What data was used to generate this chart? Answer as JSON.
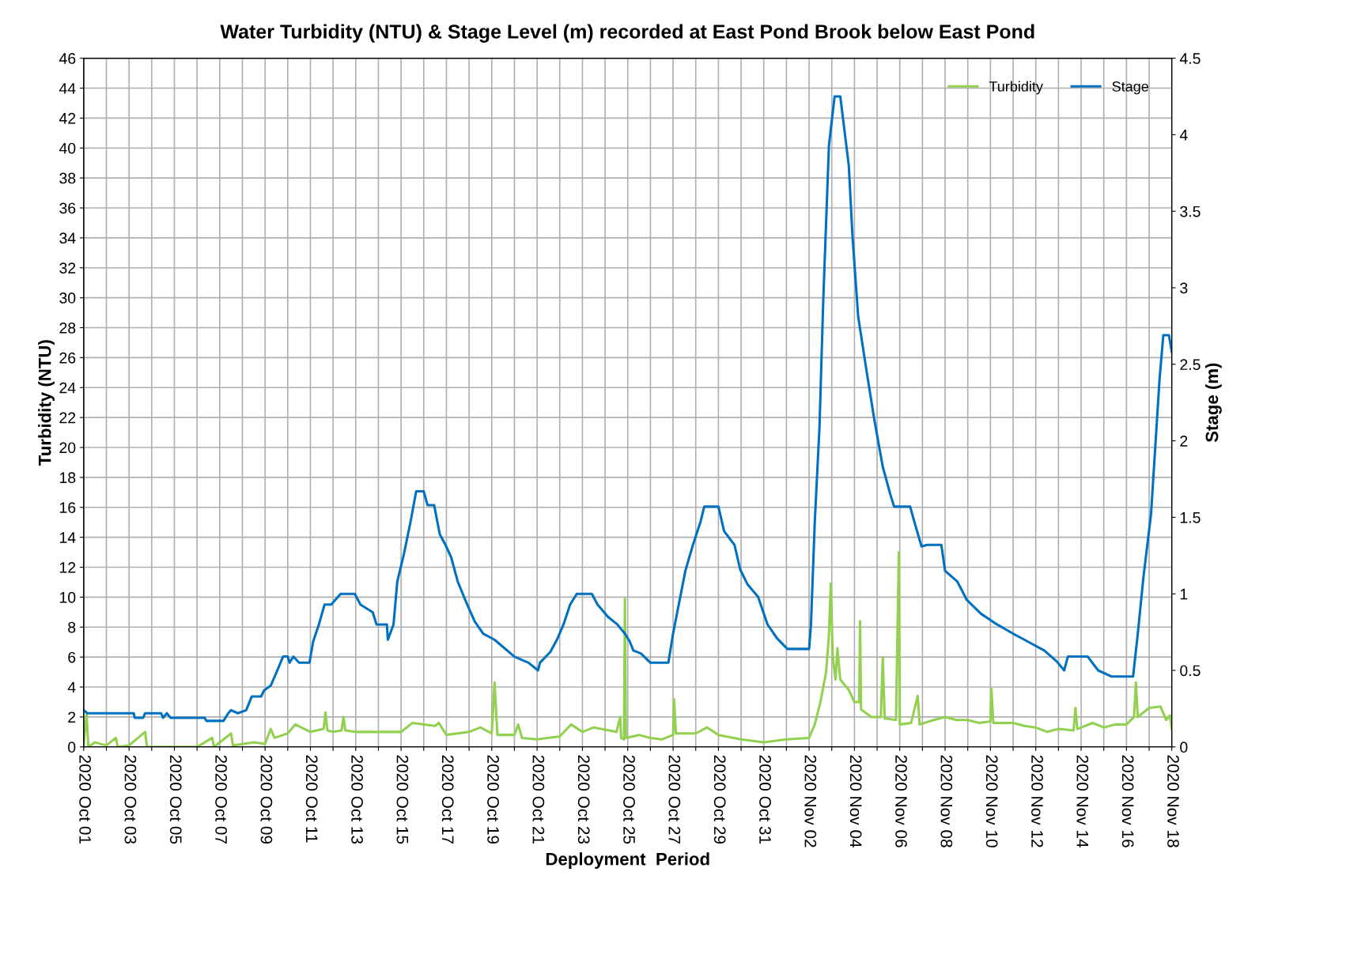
{
  "chart_data": {
    "type": "line",
    "title": "Water Turbidity (NTU) & Stage Level (m) recorded at East Pond Brook below East Pond",
    "xlabel": "Deployment  Period",
    "ylabel": "Turbidity (NTU)",
    "y2label": "Stage (m)",
    "series": [
      {
        "name": "Turbidity",
        "color": "#92d050",
        "x": [
          "2020-10-01T00:00",
          "2020-10-01T03:00",
          "2020-10-01T05:00",
          "2020-10-01T12:00",
          "2020-10-02T00:00",
          "2020-10-02T10:00",
          "2020-10-02T12:00",
          "2020-10-03T00:00",
          "2020-10-03T17:00",
          "2020-10-03T19:00",
          "2020-10-05T00:00",
          "2020-10-06T00:00",
          "2020-10-06T16:00",
          "2020-10-06T18:00",
          "2020-10-07T12:00",
          "2020-10-07T14:00",
          "2020-10-08T12:00",
          "2020-10-09T00:00",
          "2020-10-09T06:00",
          "2020-10-09T10:00",
          "2020-10-10T00:00",
          "2020-10-10T08:00",
          "2020-10-11T00:00",
          "2020-10-11T14:00",
          "2020-10-11T16:00",
          "2020-10-11T18:00",
          "2020-10-12T00:00",
          "2020-10-12T09:00",
          "2020-10-12T11:00",
          "2020-10-12T13:00",
          "2020-10-13T00:00",
          "2020-10-14T00:00",
          "2020-10-15T00:00",
          "2020-10-15T12:00",
          "2020-10-16T12:00",
          "2020-10-16T16:00",
          "2020-10-17T00:00",
          "2020-10-18T00:00",
          "2020-10-18T12:00",
          "2020-10-19T00:00",
          "2020-10-19T03:00",
          "2020-10-19T06:00",
          "2020-10-20T00:00",
          "2020-10-20T04:00",
          "2020-10-20T08:00",
          "2020-10-21T00:00",
          "2020-10-22T00:00",
          "2020-10-22T12:00",
          "2020-10-23T00:00",
          "2020-10-23T12:00",
          "2020-10-24T12:00",
          "2020-10-24T16:00",
          "2020-10-24T17:00",
          "2020-10-24T20:00",
          "2020-10-24T21:00",
          "2020-10-24T22:00",
          "2020-10-25T12:00",
          "2020-10-26T00:00",
          "2020-10-26T12:00",
          "2020-10-27T00:00",
          "2020-10-27T01:00",
          "2020-10-27T03:00",
          "2020-10-28T00:00",
          "2020-10-28T12:00",
          "2020-10-29T00:00",
          "2020-10-30T00:00",
          "2020-10-31T00:00",
          "2020-11-01T00:00",
          "2020-11-02T00:00",
          "2020-11-02T06:00",
          "2020-11-02T12:00",
          "2020-11-02T18:00",
          "2020-11-02T21:00",
          "2020-11-02T23:00",
          "2020-11-03T01:00",
          "2020-11-03T04:00",
          "2020-11-03T06:00",
          "2020-11-03T09:00",
          "2020-11-03T18:00",
          "2020-11-04T00:00",
          "2020-11-04T05:00",
          "2020-11-04T06:00",
          "2020-11-04T07:00",
          "2020-11-04T18:00",
          "2020-11-05T04:00",
          "2020-11-05T06:00",
          "2020-11-05T08:00",
          "2020-11-05T20:00",
          "2020-11-05T23:00",
          "2020-11-06T00:00",
          "2020-11-06T12:00",
          "2020-11-06T19:00",
          "2020-11-06T21:00",
          "2020-11-07T12:00",
          "2020-11-08T00:00",
          "2020-11-08T12:00",
          "2020-11-09T00:00",
          "2020-11-09T12:00",
          "2020-11-10T00:00",
          "2020-11-10T01:00",
          "2020-11-10T03:00",
          "2020-11-11T00:00",
          "2020-11-11T12:00",
          "2020-11-12T00:00",
          "2020-11-12T12:00",
          "2020-11-13T00:00",
          "2020-11-13T16:00",
          "2020-11-13T18:00",
          "2020-11-13T20:00",
          "2020-11-14T12:00",
          "2020-11-15T00:00",
          "2020-11-15T12:00",
          "2020-11-16T00:00",
          "2020-11-16T08:00",
          "2020-11-16T10:00",
          "2020-11-16T12:00",
          "2020-11-17T00:00",
          "2020-11-17T12:00",
          "2020-11-17T18:00",
          "2020-11-17T22:00",
          "2020-11-18T00:00"
        ],
        "values": [
          0.2,
          2.2,
          0,
          0.3,
          0.1,
          0.6,
          0,
          0.1,
          1.0,
          0,
          0,
          0,
          0.6,
          0,
          0.9,
          0.1,
          0.3,
          0.2,
          1.2,
          0.6,
          0.9,
          1.5,
          1.0,
          1.2,
          2.3,
          1.1,
          1.0,
          1.1,
          2.0,
          1.1,
          1.0,
          1.0,
          1.0,
          1.6,
          1.4,
          1.6,
          0.8,
          1.0,
          1.3,
          0.9,
          4.3,
          0.8,
          0.8,
          1.5,
          0.6,
          0.5,
          0.7,
          1.5,
          1.0,
          1.3,
          1.0,
          2.0,
          0.6,
          0.5,
          9.9,
          0.6,
          0.8,
          0.6,
          0.5,
          0.8,
          3.2,
          0.9,
          0.9,
          1.3,
          0.8,
          0.5,
          0.3,
          0.5,
          0.6,
          1.5,
          3.0,
          5.0,
          7.5,
          10.9,
          6.0,
          4.5,
          6.6,
          4.5,
          3.8,
          3.0,
          3.0,
          8.4,
          2.5,
          2.0,
          2.0,
          6.0,
          1.9,
          1.8,
          13.0,
          1.5,
          1.6,
          3.4,
          1.5,
          1.8,
          2.0,
          1.8,
          1.8,
          1.6,
          1.7,
          3.9,
          1.6,
          1.6,
          1.4,
          1.3,
          1.0,
          1.2,
          1.1,
          2.6,
          1.2,
          1.6,
          1.3,
          1.5,
          1.5,
          2.0,
          4.3,
          2.0,
          2.6,
          2.7,
          1.8,
          2.1,
          1.2
        ]
      },
      {
        "name": "Stage",
        "color": "#0070c0",
        "axis": "y2",
        "x": [
          "2020-10-01T00:00",
          "2020-10-01T04:00",
          "2020-10-03T05:00",
          "2020-10-03T06:00",
          "2020-10-03T15:00",
          "2020-10-03T17:00",
          "2020-10-04T10:00",
          "2020-10-04T12:00",
          "2020-10-04T16:00",
          "2020-10-04T20:00",
          "2020-10-06T08:00",
          "2020-10-06T10:00",
          "2020-10-07T04:00",
          "2020-10-07T09:00",
          "2020-10-07T12:00",
          "2020-10-07T19:00",
          "2020-10-08T04:00",
          "2020-10-08T10:00",
          "2020-10-08T20:00",
          "2020-10-08T23:00",
          "2020-10-09T06:00",
          "2020-10-09T13:00",
          "2020-10-09T19:00",
          "2020-10-10T00:00",
          "2020-10-10T02:00",
          "2020-10-10T06:00",
          "2020-10-10T12:00",
          "2020-10-10T23:00",
          "2020-10-11T03:00",
          "2020-10-11T09:00",
          "2020-10-11T15:00",
          "2020-10-11T22:00",
          "2020-10-12T08:00",
          "2020-10-12T23:00",
          "2020-10-13T05:00",
          "2020-10-13T18:00",
          "2020-10-13T22:00",
          "2020-10-14T09:00",
          "2020-10-14T10:00",
          "2020-10-14T16:00",
          "2020-10-14T20:00",
          "2020-10-15T03:00",
          "2020-10-15T10:00",
          "2020-10-15T16:00",
          "2020-10-16T00:00",
          "2020-10-16T04:00",
          "2020-10-16T11:00",
          "2020-10-16T17:00",
          "2020-10-16T23:00",
          "2020-10-17T05:00",
          "2020-10-17T12:00",
          "2020-10-17T22:00",
          "2020-10-18T06:00",
          "2020-10-18T15:00",
          "2020-10-19T03:00",
          "2020-10-20T00:00",
          "2020-10-20T15:00",
          "2020-10-21T01:00",
          "2020-10-21T03:00",
          "2020-10-21T14:00",
          "2020-10-21T21:00",
          "2020-10-22T04:00",
          "2020-10-22T11:00",
          "2020-10-22T18:00",
          "2020-10-23T10:00",
          "2020-10-23T16:00",
          "2020-10-24T03:00",
          "2020-10-24T13:00",
          "2020-10-24T21:00",
          "2020-10-25T02:00",
          "2020-10-25T06:00",
          "2020-10-25T14:00",
          "2020-10-26T00:00",
          "2020-10-26T19:00",
          "2020-10-27T00:00",
          "2020-10-27T06:00",
          "2020-10-27T13:00",
          "2020-10-27T21:00",
          "2020-10-28T05:00",
          "2020-10-28T09:00",
          "2020-10-29T00:00",
          "2020-10-29T06:00",
          "2020-10-29T17:00",
          "2020-10-29T23:00",
          "2020-10-30T07:00",
          "2020-10-30T18:00",
          "2020-10-31T04:00",
          "2020-10-31T14:00",
          "2020-11-01T01:00",
          "2020-11-02T00:00",
          "2020-11-02T02:00",
          "2020-11-02T06:00",
          "2020-11-02T11:00",
          "2020-11-02T15:00",
          "2020-11-02T21:00",
          "2020-11-03T03:00",
          "2020-11-03T09:00",
          "2020-11-03T12:00",
          "2020-11-03T18:00",
          "2020-11-03T22:00",
          "2020-11-04T04:00",
          "2020-11-04T13:00",
          "2020-11-04T21:00",
          "2020-11-05T06:00",
          "2020-11-05T14:00",
          "2020-11-05T18:00",
          "2020-11-06T11:00",
          "2020-11-06T15:00",
          "2020-11-06T23:00",
          "2020-11-07T05:00",
          "2020-11-07T20:00",
          "2020-11-08T00:00",
          "2020-11-08T13:00",
          "2020-11-08T23:00",
          "2020-11-09T14:00",
          "2020-11-10T07:00",
          "2020-11-11T00:00",
          "2020-11-11T12:00",
          "2020-11-12T09:00",
          "2020-11-12T22:00",
          "2020-11-13T06:00",
          "2020-11-13T10:00",
          "2020-11-14T07:00",
          "2020-11-14T18:00",
          "2020-11-15T08:00",
          "2020-11-16T07:00",
          "2020-11-16T12:00",
          "2020-11-16T18:00",
          "2020-11-17T02:00",
          "2020-11-17T11:00",
          "2020-11-17T15:00",
          "2020-11-17T21:00",
          "2020-11-18T00:00"
        ],
        "values": [
          0.24,
          0.22,
          0.22,
          0.19,
          0.19,
          0.22,
          0.22,
          0.19,
          0.22,
          0.19,
          0.19,
          0.17,
          0.17,
          0.22,
          0.24,
          0.22,
          0.24,
          0.33,
          0.33,
          0.37,
          0.4,
          0.5,
          0.59,
          0.59,
          0.55,
          0.59,
          0.55,
          0.55,
          0.69,
          0.8,
          0.93,
          0.93,
          1.0,
          1.0,
          0.93,
          0.88,
          0.8,
          0.8,
          0.7,
          0.8,
          1.08,
          1.26,
          1.47,
          1.67,
          1.67,
          1.58,
          1.58,
          1.39,
          1.32,
          1.24,
          1.08,
          0.93,
          0.82,
          0.74,
          0.7,
          0.59,
          0.55,
          0.5,
          0.55,
          0.62,
          0.7,
          0.8,
          0.93,
          1.0,
          1.0,
          0.93,
          0.85,
          0.8,
          0.74,
          0.69,
          0.63,
          0.61,
          0.55,
          0.55,
          0.74,
          0.93,
          1.15,
          1.32,
          1.47,
          1.57,
          1.57,
          1.41,
          1.32,
          1.16,
          1.06,
          0.98,
          0.8,
          0.71,
          0.64,
          0.64,
          0.8,
          1.47,
          2.09,
          2.92,
          3.93,
          4.25,
          4.25,
          4.1,
          3.8,
          3.33,
          2.81,
          2.45,
          2.14,
          1.83,
          1.65,
          1.57,
          1.57,
          1.48,
          1.31,
          1.32,
          1.32,
          1.15,
          1.08,
          0.96,
          0.87,
          0.8,
          0.74,
          0.7,
          0.63,
          0.56,
          0.5,
          0.59,
          0.59,
          0.5,
          0.46,
          0.46,
          0.74,
          1.11,
          1.52,
          2.4,
          2.69,
          2.69,
          2.58
        ]
      }
    ],
    "xlim": [
      "2020-10-01",
      "2020-11-18"
    ],
    "xticks": [
      {
        "value": "2020-10-01",
        "label": "2020 Oct 01"
      },
      {
        "value": "2020-10-02",
        "label": null
      },
      {
        "value": "2020-10-03",
        "label": "2020 Oct 03"
      },
      {
        "value": "2020-10-04",
        "label": null
      },
      {
        "value": "2020-10-05",
        "label": "2020 Oct 05"
      },
      {
        "value": "2020-10-06",
        "label": null
      },
      {
        "value": "2020-10-07",
        "label": "2020 Oct 07"
      },
      {
        "value": "2020-10-08",
        "label": null
      },
      {
        "value": "2020-10-09",
        "label": "2020 Oct 09"
      },
      {
        "value": "2020-10-10",
        "label": null
      },
      {
        "value": "2020-10-11",
        "label": "2020 Oct 11"
      },
      {
        "value": "2020-10-12",
        "label": null
      },
      {
        "value": "2020-10-13",
        "label": "2020 Oct 13"
      },
      {
        "value": "2020-10-14",
        "label": null
      },
      {
        "value": "2020-10-15",
        "label": "2020 Oct 15"
      },
      {
        "value": "2020-10-16",
        "label": null
      },
      {
        "value": "2020-10-17",
        "label": "2020 Oct 17"
      },
      {
        "value": "2020-10-18",
        "label": null
      },
      {
        "value": "2020-10-19",
        "label": "2020 Oct 19"
      },
      {
        "value": "2020-10-20",
        "label": null
      },
      {
        "value": "2020-10-21",
        "label": "2020 Oct 21"
      },
      {
        "value": "2020-10-22",
        "label": null
      },
      {
        "value": "2020-10-23",
        "label": "2020 Oct 23"
      },
      {
        "value": "2020-10-24",
        "label": null
      },
      {
        "value": "2020-10-25",
        "label": "2020 Oct 25"
      },
      {
        "value": "2020-10-26",
        "label": null
      },
      {
        "value": "2020-10-27",
        "label": "2020 Oct 27"
      },
      {
        "value": "2020-10-28",
        "label": null
      },
      {
        "value": "2020-10-29",
        "label": "2020 Oct 29"
      },
      {
        "value": "2020-10-30",
        "label": null
      },
      {
        "value": "2020-10-31",
        "label": "2020 Oct 31"
      },
      {
        "value": "2020-11-01",
        "label": null
      },
      {
        "value": "2020-11-02",
        "label": "2020 Nov 02"
      },
      {
        "value": "2020-11-03",
        "label": null
      },
      {
        "value": "2020-11-04",
        "label": "2020 Nov 04"
      },
      {
        "value": "2020-11-05",
        "label": null
      },
      {
        "value": "2020-11-06",
        "label": "2020 Nov 06"
      },
      {
        "value": "2020-11-07",
        "label": null
      },
      {
        "value": "2020-11-08",
        "label": "2020 Nov 08"
      },
      {
        "value": "2020-11-09",
        "label": null
      },
      {
        "value": "2020-11-10",
        "label": "2020 Nov 10"
      },
      {
        "value": "2020-11-11",
        "label": null
      },
      {
        "value": "2020-11-12",
        "label": "2020 Nov 12"
      },
      {
        "value": "2020-11-13",
        "label": null
      },
      {
        "value": "2020-11-14",
        "label": "2020 Nov 14"
      },
      {
        "value": "2020-11-15",
        "label": null
      },
      {
        "value": "2020-11-16",
        "label": "2020 Nov 16"
      },
      {
        "value": "2020-11-17",
        "label": null
      },
      {
        "value": "2020-11-18",
        "label": "2020 Nov 18"
      }
    ],
    "ylim": [
      0,
      46
    ],
    "yticks": [
      0,
      2,
      4,
      6,
      8,
      10,
      12,
      14,
      16,
      18,
      20,
      22,
      24,
      26,
      28,
      30,
      32,
      34,
      36,
      38,
      40,
      42,
      44,
      46
    ],
    "y2lim": [
      0,
      4.5
    ],
    "y2ticks": [
      0,
      0.5,
      1,
      1.5,
      2,
      2.5,
      3,
      3.5,
      4,
      4.5
    ],
    "grid": true,
    "legend": "top right",
    "marker": "none",
    "line_style": "solid"
  }
}
